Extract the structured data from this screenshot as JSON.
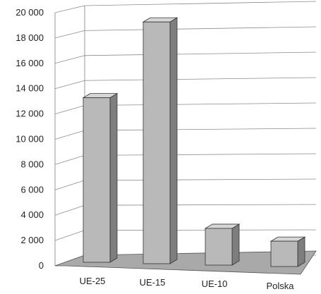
{
  "chart_data": {
    "type": "bar",
    "categories": [
      "UE-25",
      "UE-15",
      "UE-10",
      "Polska"
    ],
    "values": [
      13000,
      19100,
      2900,
      2000
    ],
    "ylim": [
      0,
      20000
    ],
    "yticks": [
      0,
      2000,
      4000,
      6000,
      8000,
      10000,
      12000,
      14000,
      16000,
      18000,
      20000
    ],
    "ytick_labels": [
      "0",
      "2 000",
      "4 000",
      "6 000",
      "8 000",
      "10 000",
      "12 000",
      "14 000",
      "16 000",
      "18 000",
      "20 000"
    ],
    "grid": true,
    "legend": "none",
    "style": "3d-columns",
    "colors": {
      "bar_front": "#b9b9b9",
      "bar_side": "#7e7e7e",
      "bar_top": "#d6d6d6",
      "floor": "#a9a9a9",
      "grid": "#8c8c8c",
      "text": "#222222"
    }
  }
}
